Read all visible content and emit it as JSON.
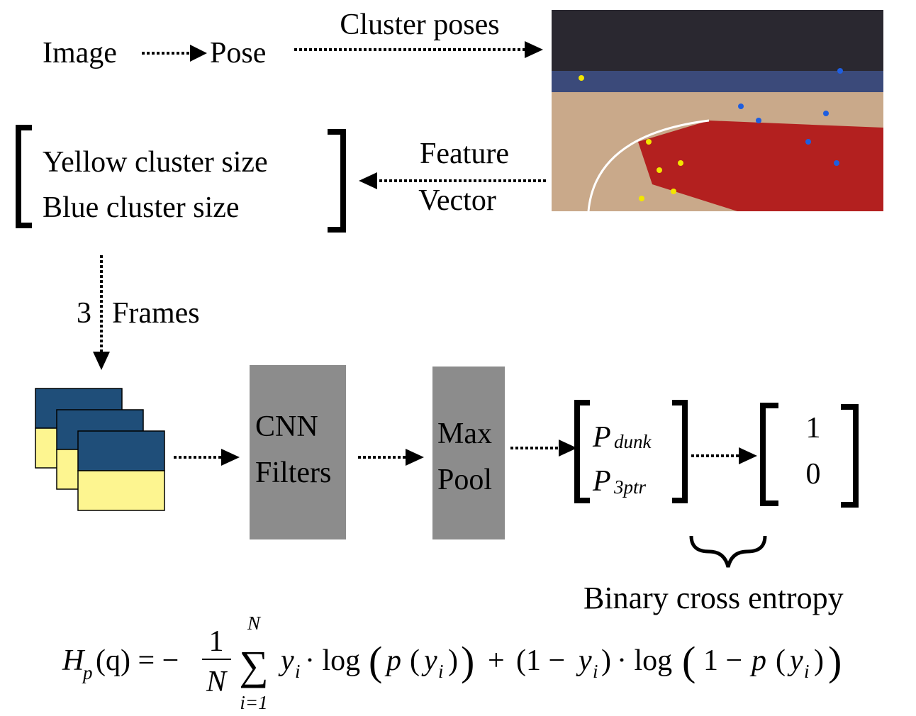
{
  "pipeline": {
    "image": "Image",
    "pose": "Pose",
    "cluster_edge": "Cluster poses",
    "vector": [
      "Yellow cluster size",
      "Blue cluster size"
    ],
    "feature_edge": [
      "Feature",
      "Vector"
    ],
    "frames_edge": [
      "3",
      "Frames"
    ],
    "cnn": [
      "CNN",
      "Filters"
    ],
    "pool": [
      "Max",
      "Pool"
    ],
    "output": [
      {
        "symbol": "P",
        "sub": "dunk"
      },
      {
        "symbol": "P",
        "sub": "3ptr"
      }
    ],
    "target": [
      "1",
      "0"
    ],
    "loss": "Binary cross entropy"
  },
  "formula": [
    "H",
    "p",
    "(q) = −",
    "1",
    "N",
    "∑",
    "N",
    "i=1",
    "y",
    "i",
    "· log",
    "(",
    "p",
    "(",
    "y",
    "i",
    ")",
    ")",
    "+",
    "(1 −",
    "y",
    "i",
    ")",
    "· log",
    "(",
    "1 −",
    "p",
    "(",
    "y",
    "i",
    ")",
    ")"
  ]
}
